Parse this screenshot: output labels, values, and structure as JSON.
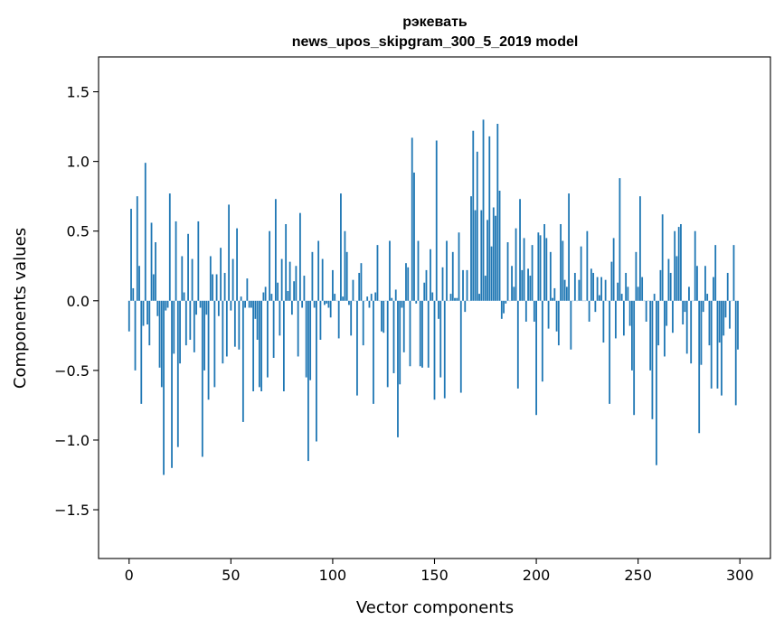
{
  "chart_data": {
    "type": "bar",
    "title_line1": "рэкевать",
    "title_line2": "news_upos_skipgram_300_5_2019 model",
    "xlabel": "Vector components",
    "ylabel": "Components values",
    "xlim": [
      -15,
      315
    ],
    "ylim": [
      -1.85,
      1.75
    ],
    "xticks": [
      0,
      50,
      100,
      150,
      200,
      250,
      300
    ],
    "yticks": [
      -1.5,
      -1.0,
      -0.5,
      0.0,
      0.5,
      1.0,
      1.5
    ],
    "ytick_labels": [
      "−1.5",
      "−1.0",
      "−0.5",
      "0.0",
      "0.5",
      "1.0",
      "1.5"
    ],
    "bar_color": "#1f77b4",
    "grid": false,
    "values": [
      -0.22,
      0.66,
      0.09,
      -0.5,
      0.75,
      0.25,
      -0.74,
      -0.18,
      0.99,
      -0.17,
      -0.32,
      0.56,
      0.19,
      0.42,
      -0.11,
      -0.48,
      -0.62,
      -1.25,
      -0.07,
      -0.05,
      0.77,
      -1.2,
      -0.38,
      0.57,
      -1.05,
      -0.45,
      0.32,
      0.06,
      -0.32,
      0.48,
      -0.28,
      0.3,
      -0.37,
      -0.1,
      0.57,
      -0.05,
      -1.12,
      -0.5,
      -0.1,
      -0.71,
      0.32,
      0.19,
      -0.62,
      0.19,
      -0.11,
      0.38,
      -0.45,
      0.2,
      -0.4,
      0.69,
      -0.07,
      0.3,
      -0.33,
      0.52,
      -0.35,
      0.03,
      -0.87,
      -0.05,
      0.16,
      -0.05,
      -0.05,
      -0.65,
      -0.13,
      -0.28,
      -0.62,
      -0.65,
      0.06,
      0.1,
      -0.55,
      0.5,
      0.05,
      -0.41,
      0.73,
      0.13,
      -0.25,
      0.3,
      -0.65,
      0.55,
      0.07,
      0.28,
      -0.1,
      0.14,
      0.25,
      -0.4,
      0.63,
      -0.05,
      0.18,
      -0.55,
      -1.15,
      -0.57,
      0.35,
      -0.05,
      -1.01,
      0.43,
      -0.28,
      0.3,
      -0.03,
      -0.02,
      -0.05,
      -0.12,
      0.22,
      0.05,
      0.0,
      -0.27,
      0.77,
      0.03,
      0.5,
      0.35,
      -0.03,
      -0.25,
      0.15,
      0.0,
      -0.68,
      0.2,
      0.27,
      -0.32,
      0.0,
      0.03,
      -0.05,
      0.05,
      -0.74,
      0.06,
      0.4,
      0.0,
      -0.22,
      -0.23,
      0.0,
      -0.62,
      0.43,
      0.02,
      -0.52,
      0.08,
      -0.98,
      -0.6,
      -0.05,
      -0.37,
      0.27,
      0.24,
      -0.47,
      1.17,
      0.92,
      -0.02,
      0.43,
      -0.47,
      -0.48,
      0.13,
      0.22,
      -0.48,
      0.37,
      0.06,
      -0.71,
      1.15,
      -0.13,
      -0.55,
      0.24,
      -0.7,
      0.43,
      0.0,
      0.05,
      0.35,
      0.02,
      0.02,
      0.49,
      -0.66,
      0.22,
      -0.08,
      0.22,
      0.0,
      0.75,
      1.22,
      0.65,
      1.07,
      0.05,
      0.65,
      1.3,
      0.18,
      0.58,
      1.18,
      0.39,
      0.67,
      0.61,
      1.27,
      0.79,
      -0.13,
      -0.09,
      -0.02,
      0.42,
      0.0,
      0.25,
      0.1,
      0.52,
      -0.63,
      0.73,
      0.22,
      0.45,
      -0.15,
      0.23,
      0.18,
      0.4,
      -0.15,
      -0.82,
      0.49,
      0.47,
      -0.58,
      0.55,
      0.45,
      -0.2,
      0.35,
      0.02,
      0.09,
      -0.22,
      -0.32,
      0.55,
      0.43,
      0.15,
      0.1,
      0.77,
      -0.35,
      0.0,
      0.2,
      0.0,
      0.15,
      0.39,
      0.0,
      0.0,
      0.5,
      -0.15,
      0.23,
      0.2,
      -0.08,
      0.17,
      0.04,
      0.17,
      -0.3,
      0.15,
      0.0,
      -0.74,
      0.28,
      0.45,
      -0.27,
      0.13,
      0.88,
      0.05,
      -0.25,
      0.2,
      0.1,
      -0.18,
      -0.5,
      -0.82,
      0.35,
      0.1,
      0.75,
      0.17,
      0.0,
      -0.15,
      0.0,
      -0.5,
      -0.85,
      0.05,
      -1.18,
      -0.32,
      0.22,
      0.62,
      -0.4,
      -0.18,
      0.3,
      0.2,
      -0.23,
      0.5,
      0.32,
      0.53,
      0.55,
      -0.17,
      -0.08,
      -0.38,
      0.1,
      -0.45,
      0.0,
      0.5,
      0.25,
      -0.95,
      -0.46,
      -0.08,
      0.25,
      0.05,
      -0.32,
      -0.63,
      0.17,
      0.4,
      -0.63,
      -0.3,
      -0.68,
      -0.25,
      -0.12,
      0.2,
      -0.2,
      0.0,
      0.4,
      -0.75,
      -0.35
    ]
  }
}
